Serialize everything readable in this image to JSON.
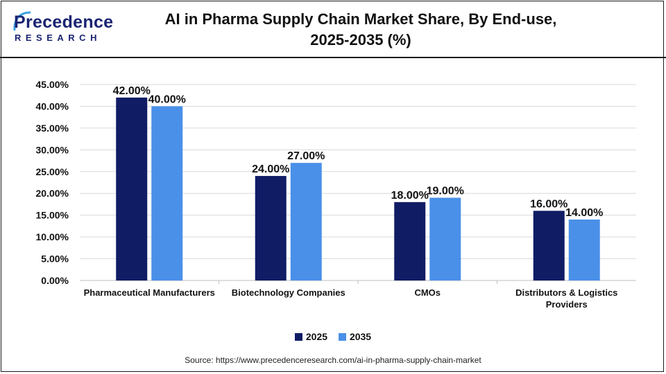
{
  "logo": {
    "main": "Precedence",
    "sub": "RESEARCH"
  },
  "chart_data": {
    "type": "bar",
    "title_line1": "AI in Pharma Supply Chain Market Share, By End-use,",
    "title_line2": "2025-2035 (%)",
    "categories": [
      [
        "Pharmaceutical Manufacturers"
      ],
      [
        "Biotechnology Companies"
      ],
      [
        "CMOs"
      ],
      [
        "Distributors & Logistics",
        "Providers"
      ]
    ],
    "series": [
      {
        "name": "2025",
        "color": "#101c64",
        "values": [
          42.0,
          24.0,
          18.0,
          16.0
        ]
      },
      {
        "name": "2035",
        "color": "#4a90e8",
        "values": [
          40.0,
          27.0,
          19.0,
          14.0
        ]
      }
    ],
    "ylim": [
      0,
      45
    ],
    "ytick_step": 5,
    "grid": true,
    "legend_position": "bottom",
    "value_format": "percent-2dp"
  },
  "source": "Source: https://www.precedenceresearch.com/ai-in-pharma-supply-chain-market"
}
